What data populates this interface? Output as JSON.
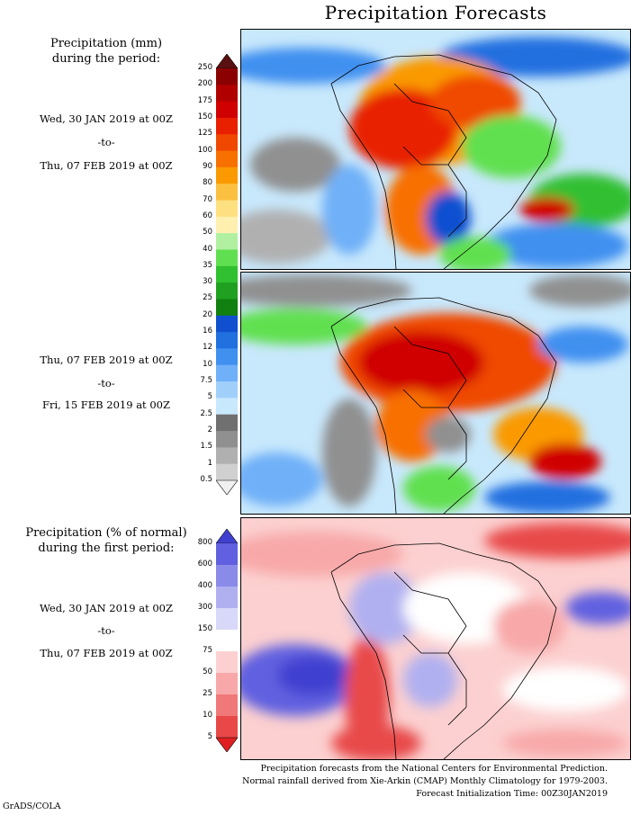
{
  "title": "Precipitation Forecasts",
  "panel1": {
    "heading_line1": "Precipitation (mm)",
    "heading_line2": "during the period:",
    "start": "Wed, 30 JAN 2019 at 00Z",
    "sep": "-to-",
    "end": "Thu, 07 FEB 2019 at 00Z"
  },
  "panel2": {
    "start": "Thu, 07 FEB 2019 at 00Z",
    "sep": "-to-",
    "end": "Fri, 15 FEB 2019 at 00Z"
  },
  "panel3": {
    "heading_line1": "Precipitation (% of normal)",
    "heading_line2": "during the first period:",
    "start": "Wed, 30 JAN 2019 at 00Z",
    "sep": "-to-",
    "end": "Thu, 07 FEB 2019 at 00Z"
  },
  "mm_scale": {
    "ticks": [
      "250",
      "200",
      "175",
      "150",
      "125",
      "100",
      "90",
      "80",
      "70",
      "60",
      "50",
      "40",
      "35",
      "30",
      "25",
      "20",
      "16",
      "12",
      "10",
      "7.5",
      "5",
      "2.5",
      "2",
      "1.5",
      "1",
      "0.5"
    ],
    "colors": [
      "#5a1010",
      "#8b0000",
      "#b00000",
      "#d00000",
      "#e82000",
      "#f04800",
      "#f87000",
      "#fa9a00",
      "#fcc040",
      "#fee080",
      "#fff0b0",
      "#b0f0a0",
      "#60e050",
      "#30c030",
      "#20a020",
      "#108010",
      "#1050d0",
      "#2070e0",
      "#4090f0",
      "#70b0f8",
      "#a0d0fa",
      "#c8e8fc",
      "#707070",
      "#909090",
      "#b0b0b0",
      "#d0d0d0",
      "#f0f0f0"
    ]
  },
  "pct_scale": {
    "ticks": [
      "800",
      "600",
      "400",
      "300",
      "150",
      "75",
      "50",
      "25",
      "10",
      "5"
    ],
    "colors": [
      "#4040d0",
      "#6060e0",
      "#8a8ae8",
      "#b0b0f0",
      "#d8d8f8",
      "#ffffff",
      "#fcd0d0",
      "#f8a8a8",
      "#f07878",
      "#e84848",
      "#e02020"
    ]
  },
  "footer": {
    "line1": "Precipitation forecasts from the National Centers for Environmental Prediction.",
    "line2": "Normal rainfall derived from Xie-Arkin (CMAP) Monthly Climatology for 1979-2003.",
    "line3": "Forecast Initialization Time: 00Z30JAN2019"
  },
  "credit": "GrADS/COLA"
}
